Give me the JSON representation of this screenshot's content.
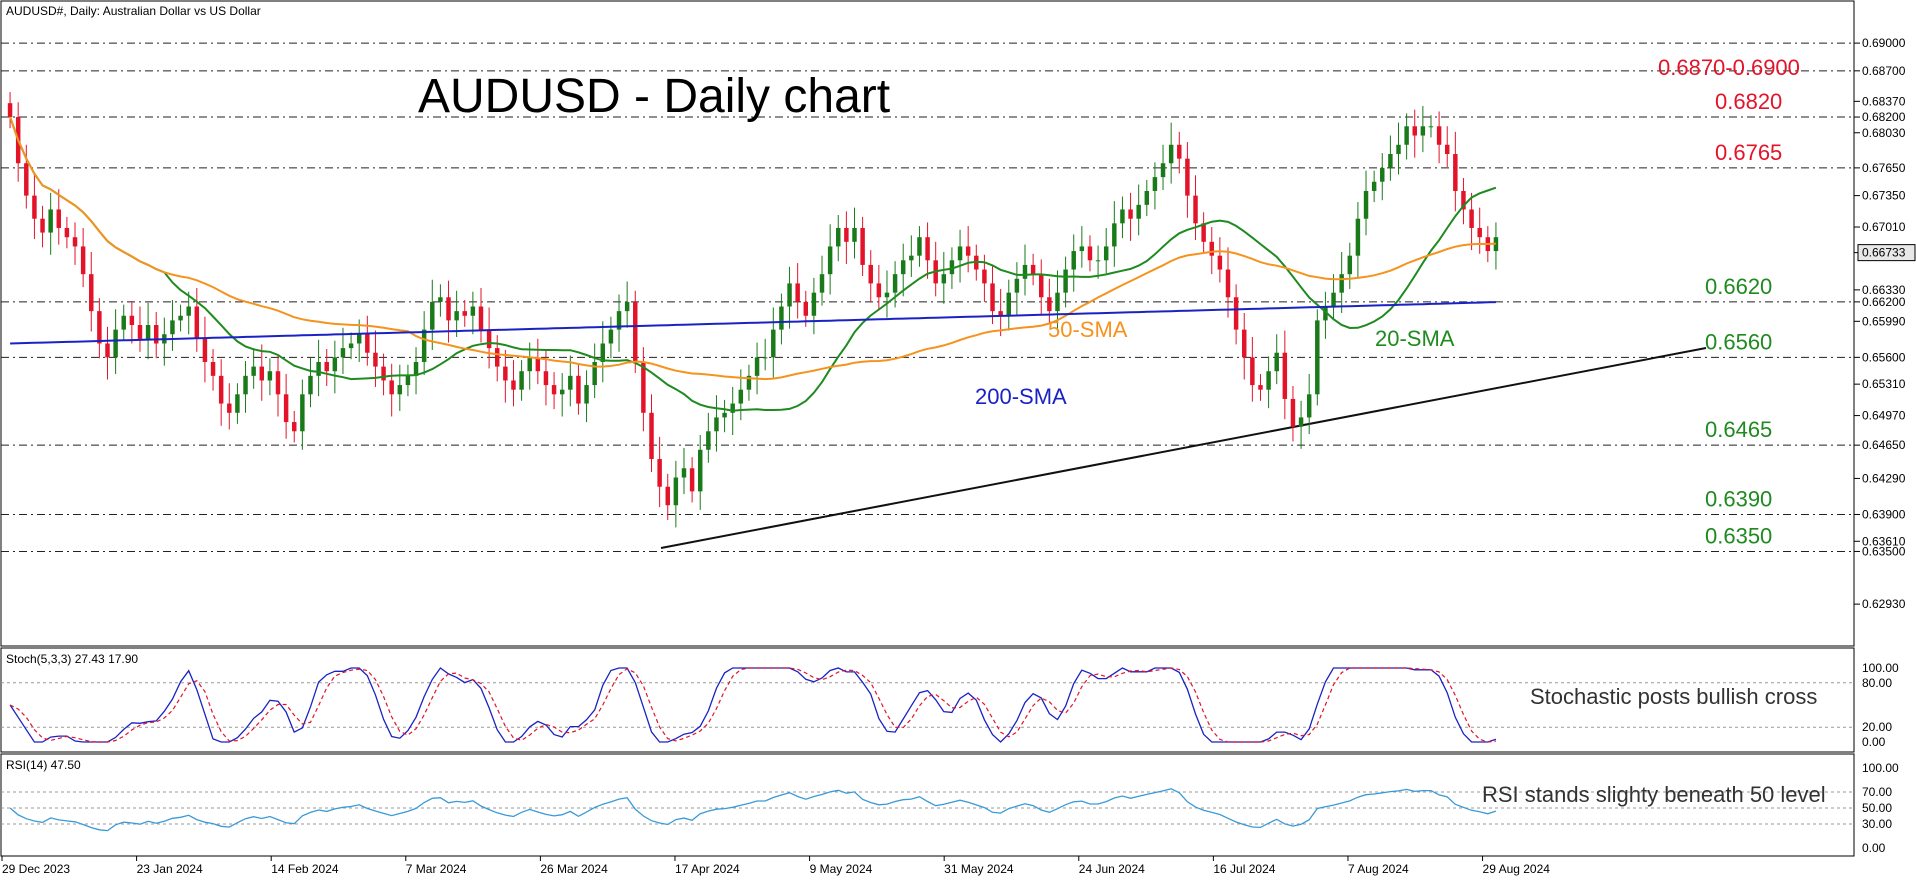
{
  "header": {
    "symbol_line": "AUDUSD#, Daily:  Australian Dollar vs US Dollar",
    "chart_title": "AUDUSD - Daily chart"
  },
  "colors": {
    "up": "#1a7a1a",
    "down": "#e3132a",
    "sma20": "#1f8a1f",
    "sma50": "#f5931e",
    "sma200": "#1a22c4",
    "level_red": "#e3132a",
    "level_green": "#1f8a1f",
    "stoch_main": "#1a22c4",
    "stoch_signal": "#e3132a",
    "rsi": "#3a9ad9"
  },
  "chart_data": [
    {
      "type": "candlestick",
      "title": "AUDUSD - Daily chart",
      "y_ticks": [
        "0.69000",
        "0.68700",
        "0.68370",
        "0.68200",
        "0.68030",
        "0.67650",
        "0.67350",
        "0.67010",
        "0.66733",
        "0.66330",
        "0.66200",
        "0.65990",
        "0.65600",
        "0.65310",
        "0.64970",
        "0.64650",
        "0.64290",
        "0.63900",
        "0.63610",
        "0.63500",
        "0.62930"
      ],
      "ylim": [
        0.6265,
        0.6925
      ],
      "x_tick_labels": [
        "29 Dec 2023",
        "23 Jan 2024",
        "14 Feb 2024",
        "7 Mar 2024",
        "26 Mar 2024",
        "17 Apr 2024",
        "9 May 2024",
        "31 May 2024",
        "24 Jun 2024",
        "16 Jul 2024",
        "7 Aug 2024",
        "29 Aug 2024"
      ],
      "current_price": "0.66733",
      "levels": [
        {
          "label": "0.6870-0.6900",
          "value": 0.687,
          "value2": 0.69,
          "color": "red"
        },
        {
          "label": "0.6820",
          "value": 0.682,
          "color": "red"
        },
        {
          "label": "0.6765",
          "value": 0.6765,
          "color": "red"
        },
        {
          "label": "0.6620",
          "value": 0.662,
          "color": "green"
        },
        {
          "label": "0.6560",
          "value": 0.656,
          "color": "green"
        },
        {
          "label": "0.6465",
          "value": 0.6465,
          "color": "green"
        },
        {
          "label": "0.6390",
          "value": 0.639,
          "color": "green"
        },
        {
          "label": "0.6350",
          "value": 0.635,
          "color": "green"
        }
      ],
      "series_labels": {
        "sma50": "50-SMA",
        "sma20": "20-SMA",
        "sma200": "200-SMA"
      },
      "closes": [
        0.682,
        0.677,
        0.6735,
        0.671,
        0.6695,
        0.672,
        0.67,
        0.669,
        0.668,
        0.665,
        0.661,
        0.6575,
        0.656,
        0.659,
        0.6605,
        0.6595,
        0.658,
        0.6595,
        0.6575,
        0.6585,
        0.66,
        0.6605,
        0.6615,
        0.658,
        0.6555,
        0.654,
        0.651,
        0.65,
        0.652,
        0.654,
        0.655,
        0.6535,
        0.6545,
        0.652,
        0.649,
        0.648,
        0.652,
        0.654,
        0.6555,
        0.6545,
        0.656,
        0.657,
        0.6575,
        0.6585,
        0.6565,
        0.655,
        0.6535,
        0.652,
        0.653,
        0.654,
        0.6555,
        0.659,
        0.662,
        0.6625,
        0.66,
        0.661,
        0.6605,
        0.6615,
        0.659,
        0.657,
        0.655,
        0.6535,
        0.6525,
        0.6545,
        0.656,
        0.6545,
        0.653,
        0.652,
        0.6525,
        0.654,
        0.651,
        0.653,
        0.6555,
        0.6575,
        0.659,
        0.661,
        0.662,
        0.6555,
        0.65,
        0.645,
        0.642,
        0.64,
        0.643,
        0.644,
        0.6415,
        0.646,
        0.648,
        0.6495,
        0.65,
        0.651,
        0.6525,
        0.654,
        0.656,
        0.656,
        0.659,
        0.6615,
        0.664,
        0.662,
        0.6605,
        0.663,
        0.665,
        0.668,
        0.67,
        0.6685,
        0.67,
        0.666,
        0.664,
        0.6625,
        0.663,
        0.665,
        0.6665,
        0.667,
        0.669,
        0.6665,
        0.664,
        0.665,
        0.6665,
        0.668,
        0.667,
        0.6655,
        0.664,
        0.661,
        0.6605,
        0.663,
        0.6645,
        0.666,
        0.665,
        0.6625,
        0.661,
        0.663,
        0.6655,
        0.6675,
        0.668,
        0.6665,
        0.6665,
        0.668,
        0.6705,
        0.672,
        0.671,
        0.6725,
        0.674,
        0.6755,
        0.677,
        0.679,
        0.6775,
        0.6735,
        0.6705,
        0.6685,
        0.667,
        0.6655,
        0.6625,
        0.659,
        0.656,
        0.653,
        0.6525,
        0.6545,
        0.6565,
        0.6515,
        0.6485,
        0.6495,
        0.652,
        0.66,
        0.6615,
        0.663,
        0.665,
        0.667,
        0.671,
        0.674,
        0.675,
        0.6765,
        0.678,
        0.679,
        0.681,
        0.68,
        0.681,
        0.681,
        0.679,
        0.678,
        0.674,
        0.672,
        0.67,
        0.669,
        0.6675,
        0.669
      ],
      "stoch_ticks": [
        "100.00",
        "80.00",
        "20.00",
        "0.00"
      ],
      "stoch_label": "Stoch(5,3,3) 27.43 17.90",
      "stoch_note": "Stochastic posts bullish cross",
      "rsi_ticks": [
        "100.00",
        "70.00",
        "50.00",
        "30.00",
        "0.00"
      ],
      "rsi_label": "RSI(14) 47.50",
      "rsi_note": "RSI stands slighty beneath 50 level"
    }
  ]
}
